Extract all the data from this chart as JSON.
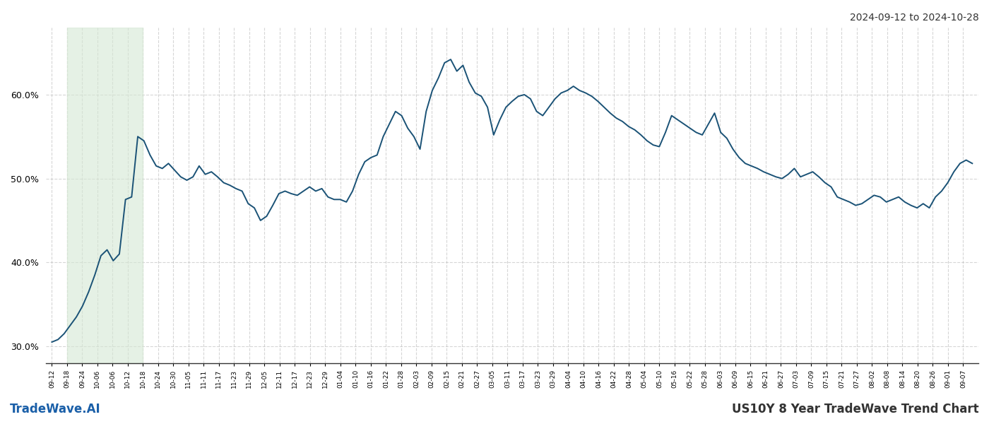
{
  "title_top_right": "2024-09-12 to 2024-10-28",
  "title_bottom_left": "TradeWave.AI",
  "title_bottom_right": "US10Y 8 Year TradeWave Trend Chart",
  "background_color": "#ffffff",
  "line_color": "#1a5276",
  "line_width": 1.4,
  "shade_color": "#d5e8d4",
  "shade_alpha": 0.6,
  "ylim": [
    28.0,
    68.0
  ],
  "yticks": [
    30.0,
    40.0,
    50.0,
    60.0
  ],
  "grid_color": "#bbbbbb",
  "grid_style": "--",
  "grid_alpha": 0.6,
  "x_labels": [
    "09-12",
    "09-18",
    "09-24",
    "10-06",
    "10-06",
    "10-12",
    "10-18",
    "10-24",
    "10-30",
    "11-05",
    "11-11",
    "11-17",
    "11-23",
    "11-29",
    "12-05",
    "12-11",
    "12-17",
    "12-23",
    "12-29",
    "01-04",
    "01-10",
    "01-16",
    "01-22",
    "01-28",
    "02-03",
    "02-09",
    "02-15",
    "02-21",
    "02-27",
    "03-05",
    "03-11",
    "03-17",
    "03-23",
    "03-29",
    "04-04",
    "04-10",
    "04-16",
    "04-22",
    "04-28",
    "05-04",
    "05-10",
    "05-16",
    "05-22",
    "05-28",
    "06-03",
    "06-09",
    "06-15",
    "06-21",
    "06-27",
    "07-03",
    "07-09",
    "07-15",
    "07-21",
    "07-27",
    "08-02",
    "08-08",
    "08-14",
    "08-20",
    "08-26",
    "09-01",
    "09-07"
  ],
  "shade_label_start": "09-18",
  "shade_label_end": "10-18",
  "values": [
    30.5,
    30.8,
    31.5,
    32.5,
    33.5,
    34.8,
    36.5,
    38.5,
    40.8,
    41.5,
    40.2,
    41.0,
    47.5,
    47.8,
    55.0,
    54.5,
    52.8,
    51.5,
    51.2,
    51.8,
    51.0,
    50.2,
    49.8,
    50.2,
    51.5,
    50.5,
    50.8,
    50.2,
    49.5,
    49.2,
    48.8,
    48.5,
    47.0,
    46.5,
    45.0,
    45.5,
    46.8,
    48.2,
    48.5,
    48.2,
    48.0,
    48.5,
    49.0,
    48.5,
    48.8,
    47.8,
    47.5,
    47.5,
    47.2,
    48.5,
    50.5,
    52.0,
    52.5,
    52.8,
    55.0,
    56.5,
    58.0,
    57.5,
    56.0,
    55.0,
    53.5,
    58.0,
    60.5,
    62.0,
    63.8,
    64.2,
    62.8,
    63.5,
    61.5,
    60.2,
    59.8,
    58.5,
    55.2,
    57.0,
    58.5,
    59.2,
    59.8,
    60.0,
    59.5,
    58.0,
    57.5,
    58.5,
    59.5,
    60.2,
    60.5,
    61.0,
    60.5,
    60.2,
    59.8,
    59.2,
    58.5,
    57.8,
    57.2,
    56.8,
    56.2,
    55.8,
    55.2,
    54.5,
    54.0,
    53.8,
    55.5,
    57.5,
    57.0,
    56.5,
    56.0,
    55.5,
    55.2,
    56.5,
    57.8,
    55.5,
    54.8,
    53.5,
    52.5,
    51.8,
    51.5,
    51.2,
    50.8,
    50.5,
    50.2,
    50.0,
    50.5,
    51.2,
    50.2,
    50.5,
    50.8,
    50.2,
    49.5,
    49.0,
    47.8,
    47.5,
    47.2,
    46.8,
    47.0,
    47.5,
    48.0,
    47.8,
    47.2,
    47.5,
    47.8,
    47.2,
    46.8,
    46.5,
    47.0,
    46.5,
    47.8,
    48.5,
    49.5,
    50.8,
    51.8,
    52.2,
    51.8
  ]
}
